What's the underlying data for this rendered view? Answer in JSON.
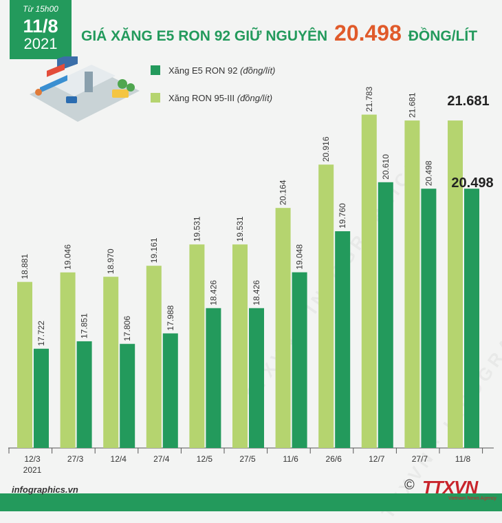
{
  "header": {
    "from_label": "Từ 15h00",
    "date": "11/8",
    "year": "2021",
    "title_prefix": "GIÁ XĂNG E5 RON 92 GIỮ NGUYÊN",
    "title_value": "20.498",
    "title_unit": "ĐỒNG/LÍT"
  },
  "legend": {
    "e5_name": "Xăng E5 RON 92",
    "e5_unit": "(đồng/lít)",
    "ron95_name": "Xăng RON 95-III",
    "ron95_unit": "(đồng/lít)"
  },
  "footer": {
    "source": "infographics.vn",
    "copyright": "©",
    "logo": "TTXVN",
    "logo_sub": "Vietnam News Agency"
  },
  "colors": {
    "green": "#239a5c",
    "light_green": "#b5d46f",
    "dark_green": "#239a5c",
    "accent": "#e05a2a"
  },
  "chart_data": {
    "type": "bar",
    "title": "GIÁ XĂNG E5 RON 92 GIỮ NGUYÊN 20.498 ĐỒNG/LÍT",
    "categories": [
      "12/3",
      "27/3",
      "12/4",
      "27/4",
      "12/5",
      "27/5",
      "11/6",
      "26/6",
      "12/7",
      "27/7",
      "11/8"
    ],
    "first_category_year": "2021",
    "ylim": [
      16000,
      22100
    ],
    "series": [
      {
        "name": "Xăng RON 95-III",
        "color": "#b5d46f",
        "values": [
          18881,
          19046,
          18970,
          19161,
          19531,
          19531,
          20164,
          20916,
          21783,
          21681,
          21681
        ],
        "labels": [
          "18.881",
          "19.046",
          "18.970",
          "19.161",
          "19.531",
          "19.531",
          "20.164",
          "20.916",
          "21.783",
          "21.681",
          "21.681"
        ]
      },
      {
        "name": "Xăng E5 RON 92",
        "color": "#239a5c",
        "values": [
          17722,
          17851,
          17806,
          17988,
          18426,
          18426,
          19048,
          19760,
          20610,
          20498,
          20498
        ],
        "labels": [
          "17.722",
          "17.851",
          "17.806",
          "17.988",
          "18.426",
          "18.426",
          "19.048",
          "19.760",
          "20.610",
          "20.498",
          "20.498"
        ]
      }
    ],
    "highlight_last": true
  }
}
